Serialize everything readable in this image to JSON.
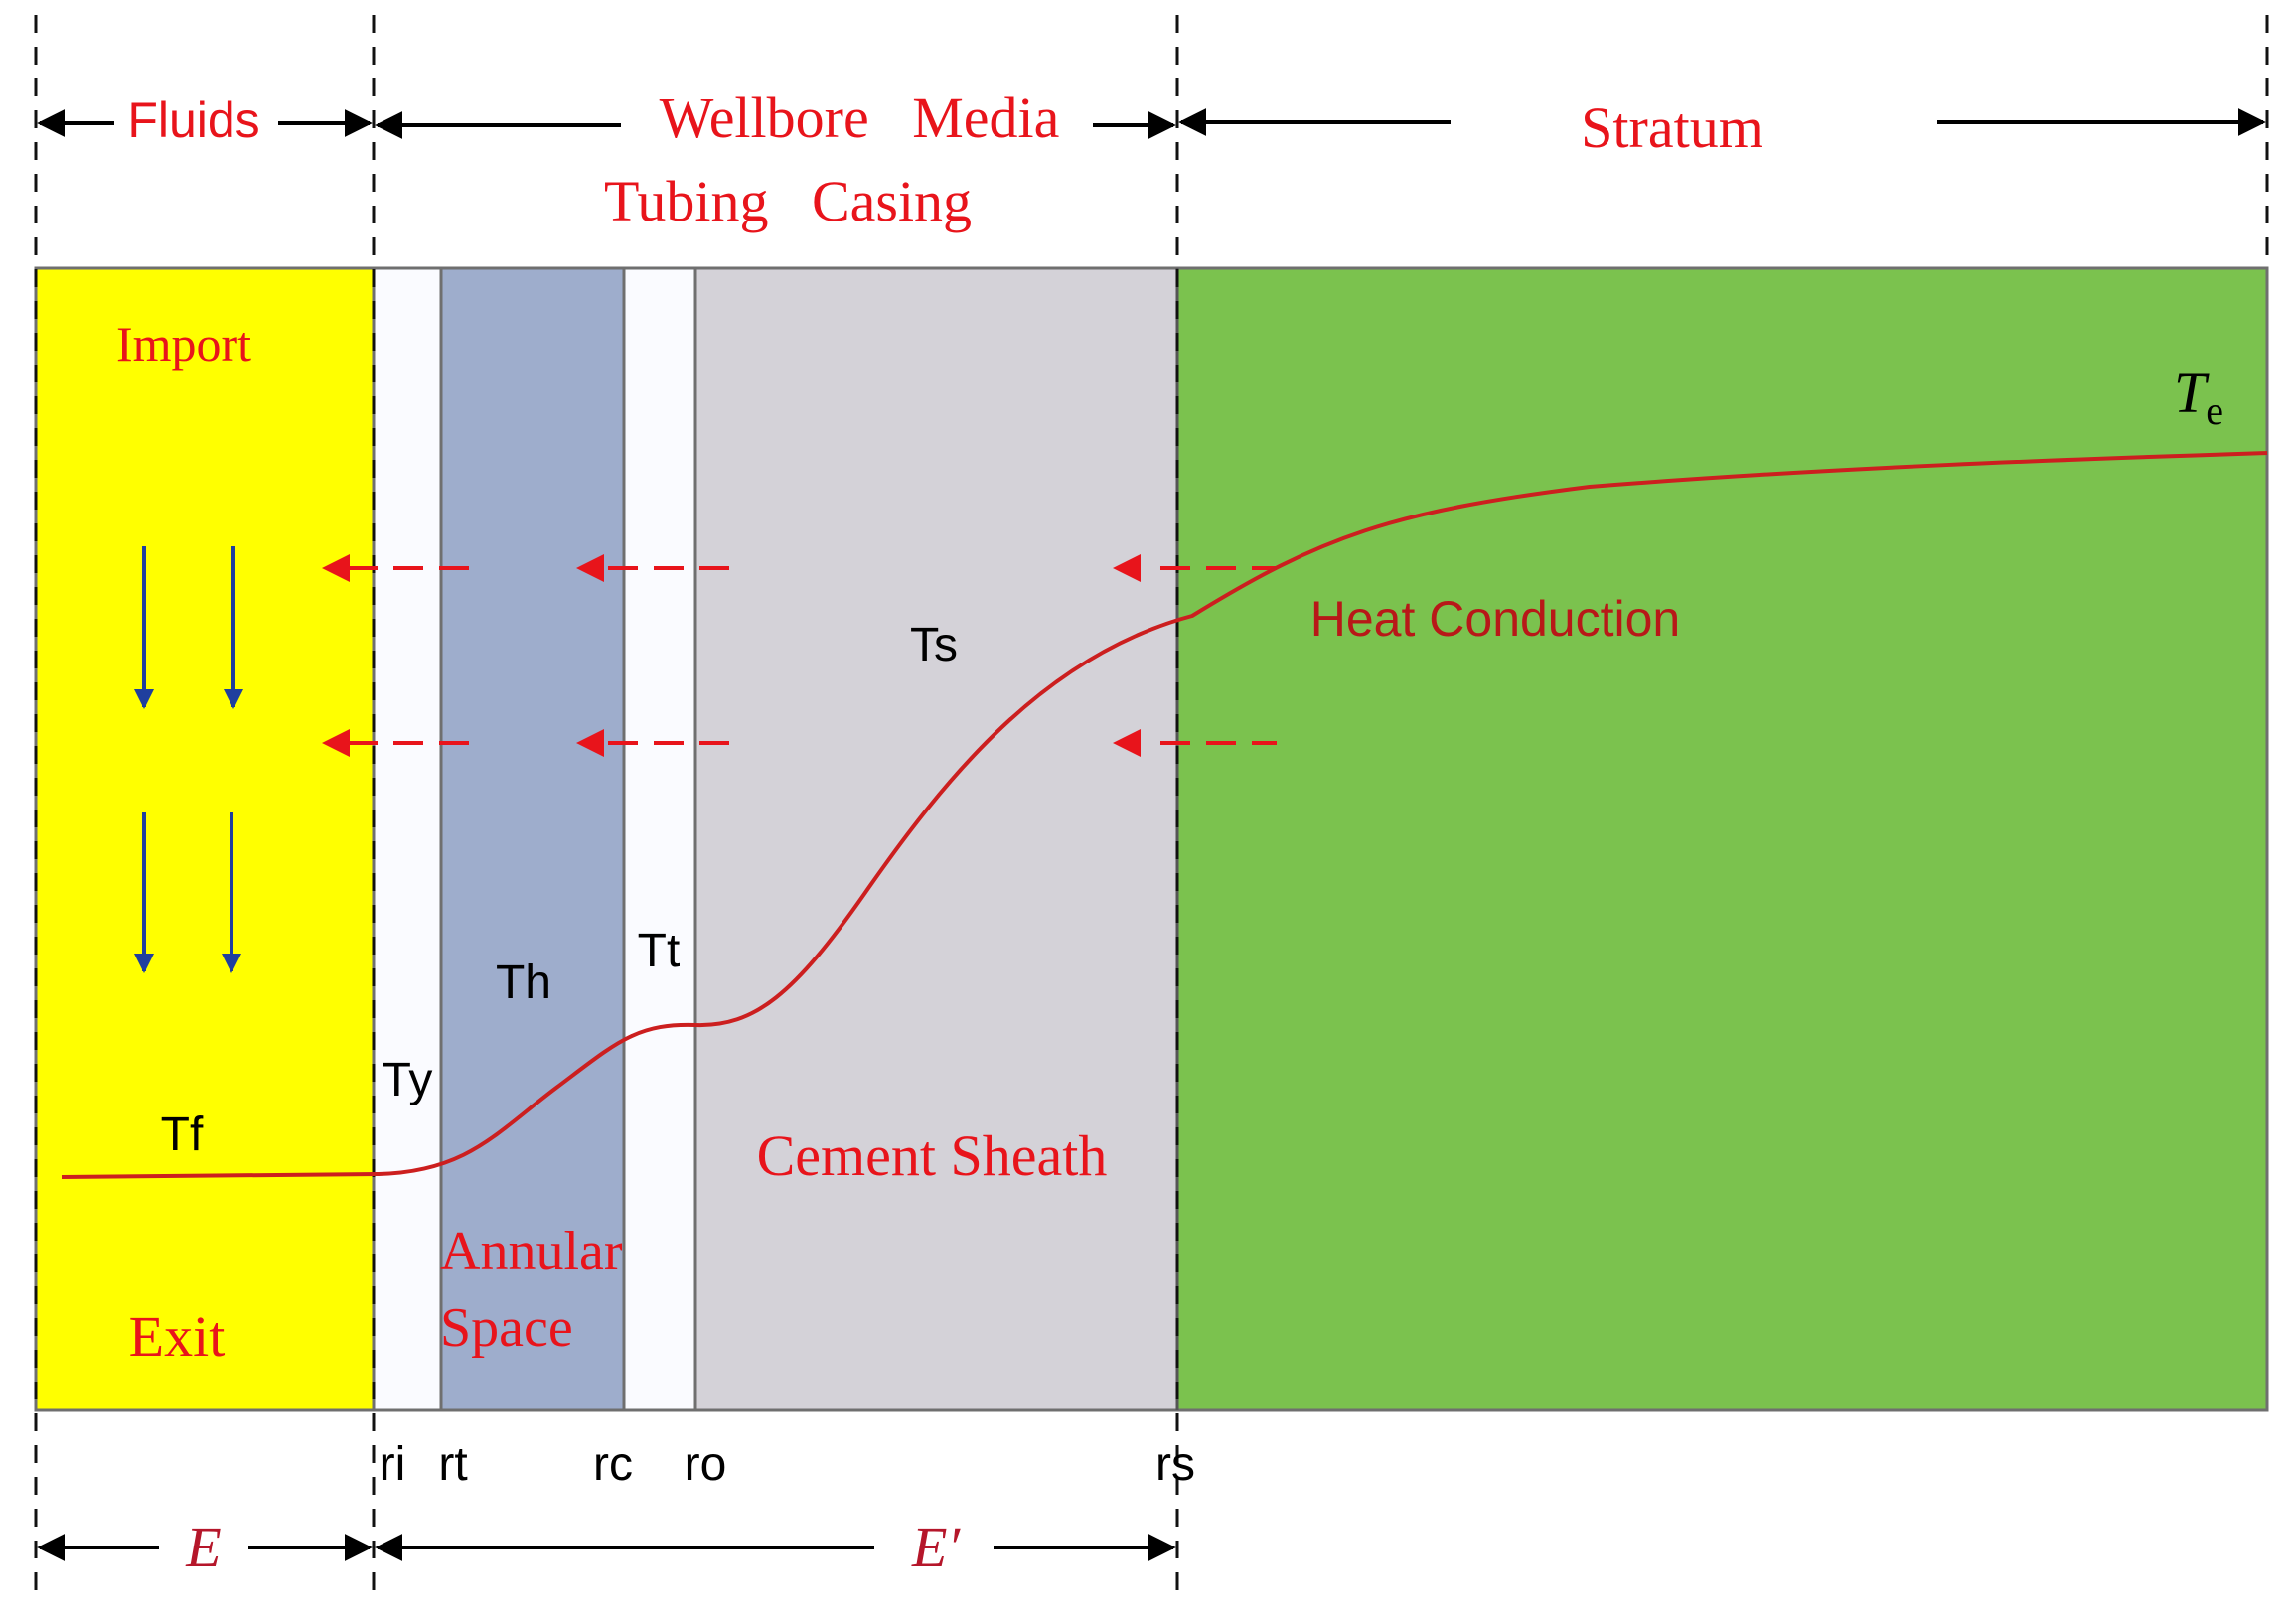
{
  "header": {
    "fluids": "Fluids",
    "wellbore_media": "Wellbore   Media",
    "tubing_casing": "Tubing   Casing",
    "stratum": "Stratum"
  },
  "zones": {
    "import_label": "Import",
    "exit_label": "Exit",
    "annular_line1": "Annular",
    "annular_line2": "Space",
    "cement_sheath": "Cement Sheath",
    "heat_conduction": "Heat Conduction"
  },
  "temperatures": {
    "tf": "Tf",
    "ty": "Ty",
    "th": "Th",
    "tt": "Tt",
    "ts": "Ts",
    "te_base": "T",
    "te_sub": "e"
  },
  "radii": {
    "ri": "ri",
    "rt": "rt",
    "rc": "rc",
    "ro": "ro",
    "rs": "rs"
  },
  "bottom": {
    "e": "E",
    "e_prime": "E′"
  },
  "colors": {
    "fluid_zone": "#ffff00",
    "tubing_wall": "#fafbff",
    "annular_space": "#9eadcc",
    "casing_wall": "#fafbff",
    "cement_sheath": "#d4d2d8",
    "stratum": "#7bc24e",
    "red_text": "#e8141b",
    "curve": "#cc1f1f",
    "flow_arrow": "#1f3f9e"
  }
}
